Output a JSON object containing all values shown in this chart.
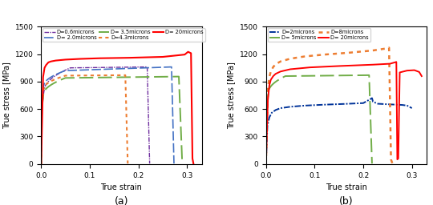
{
  "panel_a": {
    "title": "(a)",
    "xlabel": "True strain",
    "ylabel": "True stress [MPa]",
    "xlim": [
      0,
      0.33
    ],
    "ylim": [
      0,
      1500
    ],
    "yticks": [
      0,
      300,
      600,
      900,
      1200,
      1500
    ],
    "xticks": [
      0,
      0.1,
      0.2,
      0.3
    ],
    "legend_labels": [
      "D=0.6microns",
      "D= 2.0microns",
      "D= 3.5microns",
      "D=4.3microns",
      "D= 20microns"
    ],
    "legend_colors": [
      "#7030A0",
      "#4472C4",
      "#70AD47",
      "#ED7D31",
      "#FF0000"
    ],
    "legend_styles": [
      "dashdot",
      "dashed_long",
      "dashed_long2",
      "dotted",
      "solid"
    ]
  },
  "panel_b": {
    "title": "(b)",
    "xlabel": "True strain",
    "ylabel": "True stress [MPa]",
    "xlim": [
      0,
      0.33
    ],
    "ylim": [
      0,
      1500
    ],
    "yticks": [
      0,
      300,
      600,
      900,
      1200,
      1500
    ],
    "xticks": [
      0,
      0.1,
      0.2,
      0.3
    ],
    "legend_labels": [
      "D=2microns",
      "D= 5microns",
      "D=8microns",
      "D= 20microns"
    ],
    "legend_colors": [
      "#003399",
      "#70AD47",
      "#ED7D31",
      "#FF0000"
    ],
    "legend_styles": [
      "dashdot",
      "dashed_long2",
      "dotted",
      "solid"
    ]
  }
}
